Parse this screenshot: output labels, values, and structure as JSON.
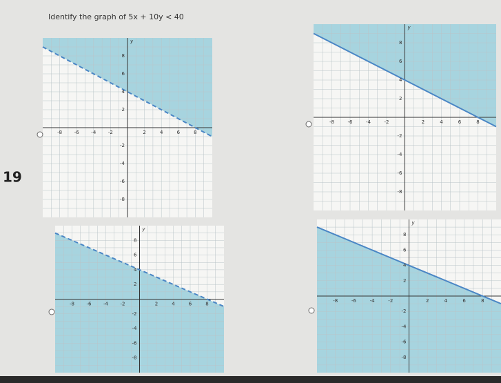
{
  "question": {
    "number": "19",
    "prompt": "Identify the graph of 5x + 10y < 40"
  },
  "options": [
    {
      "axis_label": "y",
      "xticks": [
        -8,
        -6,
        -4,
        -2,
        2,
        4,
        6,
        8
      ],
      "yticks": [
        8,
        6,
        4,
        2,
        -2,
        -4,
        -6,
        -8
      ],
      "line_style": "dashed",
      "shaded_side": "above"
    },
    {
      "axis_label": "y",
      "xticks": [
        -8,
        -6,
        -4,
        -2,
        2,
        4,
        6,
        8
      ],
      "yticks": [
        8,
        6,
        4,
        2,
        -2,
        -4,
        -6,
        -8
      ],
      "line_style": "solid",
      "shaded_side": "above"
    },
    {
      "axis_label": "y",
      "xticks": [
        -8,
        -6,
        -4,
        -2,
        2,
        4,
        6,
        8
      ],
      "yticks": [
        8,
        6,
        4,
        2,
        -2,
        -4,
        -6,
        -8
      ],
      "line_style": "dashed",
      "shaded_side": "below"
    },
    {
      "axis_label": "y",
      "xticks": [
        -8,
        -6,
        -4,
        -2,
        2,
        4,
        6,
        8
      ],
      "yticks": [
        8,
        6,
        4,
        2,
        -2,
        -4,
        -6,
        -8
      ],
      "line_style": "solid",
      "shaded_side": "below"
    }
  ]
}
